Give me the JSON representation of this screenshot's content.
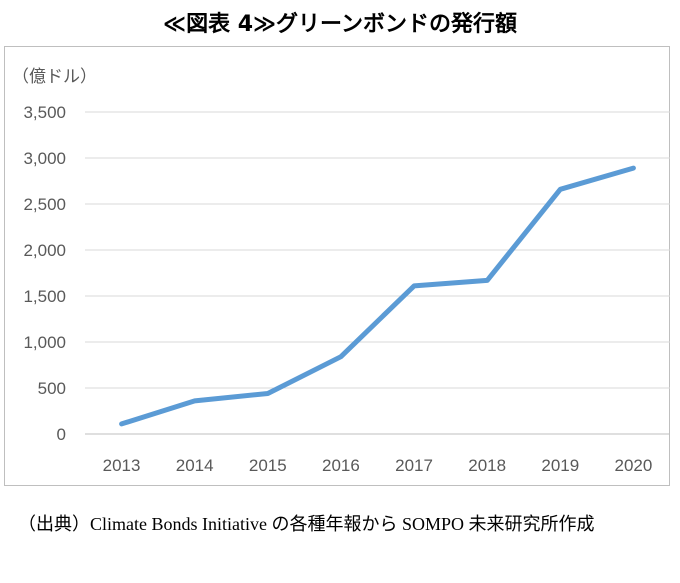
{
  "title": "≪図表 4≫グリーンボンドの発行額",
  "source_note": "（出典）Climate Bonds Initiative の各種年報から SOMPO 未来研究所作成",
  "chart_data": {
    "type": "line",
    "title": "≪図表 4≫グリーンボンドの発行額",
    "unit_label": "（億ドル）",
    "xlabel": "",
    "ylabel": "",
    "categories": [
      "2013",
      "2014",
      "2015",
      "2016",
      "2017",
      "2018",
      "2019",
      "2020"
    ],
    "series": [
      {
        "values": [
          110,
          360,
          440,
          840,
          1610,
          1670,
          2660,
          2890
        ]
      }
    ],
    "ylim": [
      0,
      3500
    ],
    "yticks": [
      0,
      500,
      1000,
      1500,
      2000,
      2500,
      3000,
      3500
    ],
    "ytick_labels": [
      "0",
      "500",
      "1,000",
      "1,500",
      "2,000",
      "2,500",
      "3,000",
      "3,500"
    ],
    "grid": true,
    "legend": "none",
    "line_color": "#5b9bd5",
    "grid_color": "#d9d9d9",
    "axis_color": "#bfbfbf",
    "tick_label_color": "#595959"
  }
}
